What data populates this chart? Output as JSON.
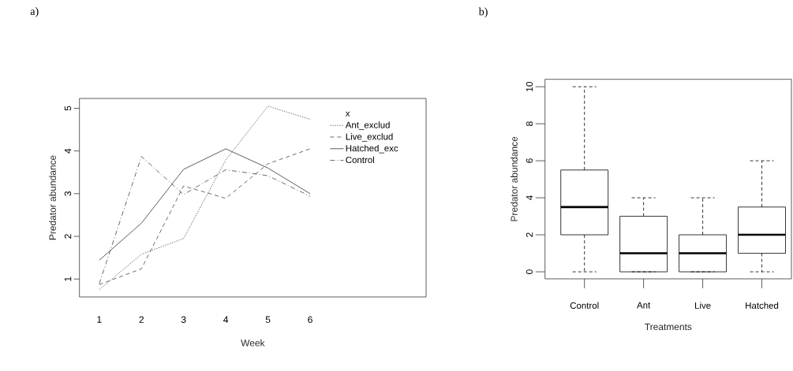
{
  "chart_data": [
    {
      "type": "line",
      "title": "a)",
      "xlabel": "Week",
      "ylabel": "Predator abundance",
      "legend_title": "x",
      "legend": "top right",
      "x": [
        1,
        2,
        3,
        4,
        5,
        6
      ],
      "xlim": [
        0.53,
        8.75
      ],
      "xticks": [
        1,
        2,
        3,
        4,
        5,
        6
      ],
      "ylim": [
        0.58,
        5.23
      ],
      "yticks": [
        1,
        2,
        3,
        4,
        5
      ],
      "series": [
        {
          "name": "Ant_exclud",
          "color": "#444444",
          "line_style": "dotted",
          "values": [
            0.75,
            1.58,
            1.95,
            3.79,
            5.05,
            4.74
          ]
        },
        {
          "name": "Live_exclud",
          "color": "#444444",
          "line_style": "dashed",
          "values": [
            0.87,
            1.24,
            3.18,
            2.89,
            3.7,
            4.05
          ]
        },
        {
          "name": "Hatched_exc",
          "color": "#333333",
          "line_style": "solid",
          "values": [
            1.44,
            2.31,
            3.57,
            4.05,
            3.6,
            3.0
          ]
        },
        {
          "name": "Control",
          "color": "#444444",
          "line_style": "dashdot",
          "values": [
            0.89,
            3.87,
            2.98,
            3.56,
            3.42,
            2.94
          ]
        }
      ]
    },
    {
      "type": "box",
      "title": "b)",
      "xlabel": "Treatments",
      "ylabel": "Predator abundance",
      "color": "#000000",
      "categories": [
        "Control",
        "Ant",
        "Live",
        "Hatched"
      ],
      "ylim": [
        -0.38,
        10.4
      ],
      "yticks": [
        0,
        2,
        4,
        6,
        8,
        10
      ],
      "boxes": [
        {
          "low": 0,
          "q1": 2,
          "median": 3.5,
          "q3": 5.5,
          "high": 10
        },
        {
          "low": 0,
          "q1": 0,
          "median": 1,
          "q3": 3,
          "high": 4
        },
        {
          "low": 0,
          "q1": 0,
          "median": 1,
          "q3": 2,
          "high": 4
        },
        {
          "low": 0,
          "q1": 1,
          "median": 2,
          "q3": 3.5,
          "high": 6
        }
      ]
    }
  ]
}
